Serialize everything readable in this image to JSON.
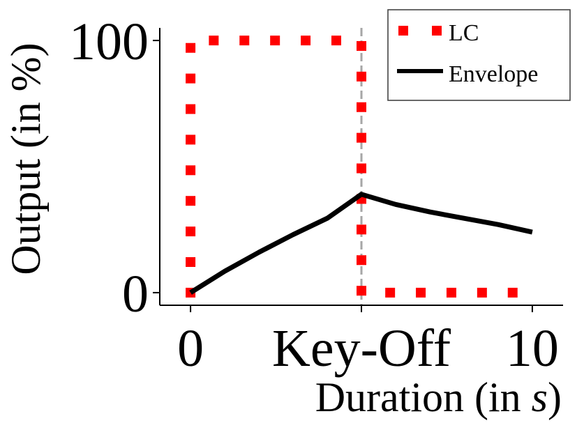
{
  "chart_data": {
    "type": "line",
    "xlabel": "Duration (in ",
    "xlabel_unit": "s",
    "xlabel_close": ")",
    "ylabel": "Output (in %)",
    "xlim": [
      -0.9,
      10.9
    ],
    "ylim": [
      -5,
      105
    ],
    "xticks": [
      {
        "value": 0,
        "label": "0"
      },
      {
        "value": 5,
        "label": "Key-Off"
      },
      {
        "value": 10,
        "label": "10"
      }
    ],
    "yticks": [
      {
        "value": 0,
        "label": "0"
      },
      {
        "value": 100,
        "label": "100"
      }
    ],
    "key_off_x": 5,
    "legend_position": "top-right",
    "series": [
      {
        "name": "LC",
        "style": "dotted",
        "color": "#ff0000",
        "x": [
          0,
          0,
          5,
          5,
          10
        ],
        "y": [
          0,
          100,
          100,
          0,
          0
        ]
      },
      {
        "name": "Envelope",
        "style": "solid",
        "color": "#000000",
        "x": [
          0,
          1,
          2,
          3,
          4,
          5,
          6,
          7,
          8,
          9,
          10
        ],
        "y": [
          0,
          8.5,
          16,
          23,
          29.5,
          39,
          35,
          32,
          29.5,
          27,
          24
        ]
      }
    ],
    "marker_color": "#ff0000",
    "guide_color": "#a6a6a6"
  }
}
